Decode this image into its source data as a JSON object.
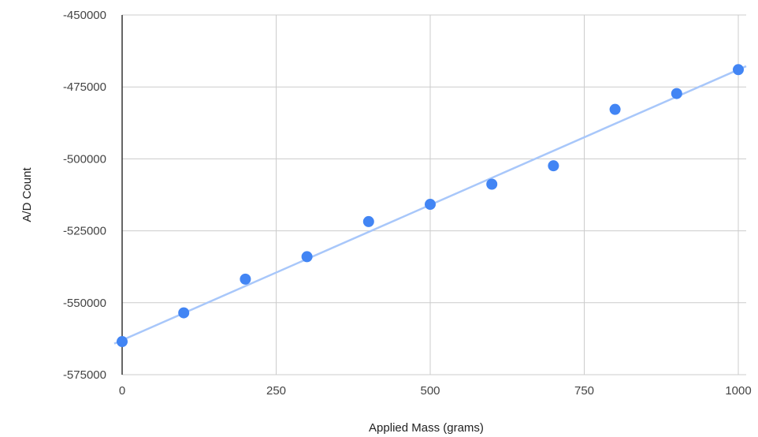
{
  "chart_data": {
    "type": "scatter",
    "title": "",
    "xlabel": "Applied Mass (grams)",
    "ylabel": "A/D Count",
    "xlim": [
      0,
      1000
    ],
    "ylim": [
      -575000,
      -450000
    ],
    "x_ticks": [
      0,
      250,
      500,
      750,
      1000
    ],
    "x_tick_labels": [
      "0",
      "250",
      "500",
      "750",
      "1000"
    ],
    "y_ticks": [
      -450000,
      -475000,
      -500000,
      -525000,
      -550000,
      -575000
    ],
    "y_tick_labels": [
      "-450000",
      "-475000",
      "-500000",
      "-525000",
      "-550000",
      "-575000"
    ],
    "grid": true,
    "legend": "none",
    "series": [
      {
        "x": [
          0,
          100,
          200,
          300,
          400,
          500,
          600,
          700,
          800,
          900,
          1000
        ],
        "y": [
          -563500,
          -553500,
          -541800,
          -534000,
          -521800,
          -515800,
          -508800,
          -502400,
          -482800,
          -477300,
          -469000
        ],
        "color": "#4285f4"
      }
    ],
    "trendline": {
      "type": "linear",
      "color": "#a8c7fa",
      "start": [
        0,
        -563000
      ],
      "end": [
        1000,
        -469000
      ]
    }
  }
}
